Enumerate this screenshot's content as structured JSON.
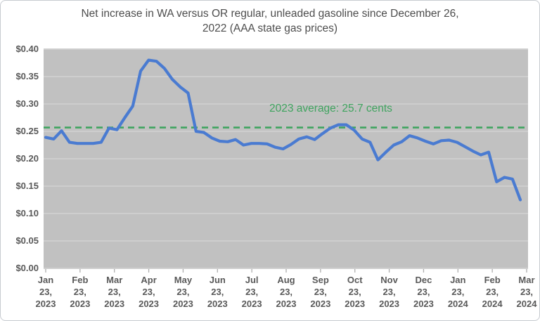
{
  "chart_data": {
    "type": "line",
    "title": "Net increase in WA versus OR regular, unleaded gasoline since December 26, 2022 (AAA state gas prices)",
    "title_lines": [
      "Net increase in WA versus OR regular, unleaded gasoline since December 26,",
      "2022 (AAA state gas prices)"
    ],
    "annotation": "2023 average: 25.7 cents",
    "average_line": {
      "value": 0.257,
      "style": "dashed",
      "color": "#3fa45f"
    },
    "ylim": [
      0,
      0.4
    ],
    "y_tick_step": 0.05,
    "y_tick_labels": [
      "$0.00",
      "$0.05",
      "$0.10",
      "$0.15",
      "$0.20",
      "$0.25",
      "$0.30",
      "$0.35",
      "$0.40"
    ],
    "x_tick_labels": [
      "Jan 23, 2023",
      "Feb 23, 2023",
      "Mar 23, 2023",
      "Apr 23, 2023",
      "May 23, 2023",
      "Jun 23, 2023",
      "Jul 23, 2023",
      "Aug 23, 2023",
      "Sep 23, 2023",
      "Oct 23, 2023",
      "Nov 23, 2023",
      "Dec 23, 2023",
      "Jan 23, 2024",
      "Feb 23, 2024",
      "Mar 23, 2024"
    ],
    "grid": true,
    "legend": "none",
    "series": [
      {
        "color": "#4a7bd1",
        "dates": [
          "2023-01-23",
          "2023-01-30",
          "2023-02-06",
          "2023-02-13",
          "2023-02-20",
          "2023-02-27",
          "2023-03-06",
          "2023-03-13",
          "2023-03-20",
          "2023-03-27",
          "2023-04-03",
          "2023-04-10",
          "2023-04-17",
          "2023-04-24",
          "2023-05-01",
          "2023-05-08",
          "2023-05-15",
          "2023-05-22",
          "2023-05-29",
          "2023-06-05",
          "2023-06-12",
          "2023-06-19",
          "2023-06-26",
          "2023-07-03",
          "2023-07-10",
          "2023-07-17",
          "2023-07-24",
          "2023-07-31",
          "2023-08-07",
          "2023-08-14",
          "2023-08-21",
          "2023-08-28",
          "2023-09-04",
          "2023-09-11",
          "2023-09-18",
          "2023-09-25",
          "2023-10-02",
          "2023-10-09",
          "2023-10-16",
          "2023-10-23",
          "2023-10-30",
          "2023-11-06",
          "2023-11-13",
          "2023-11-20",
          "2023-11-27",
          "2023-12-04",
          "2023-12-11",
          "2023-12-18",
          "2023-12-25",
          "2024-01-01",
          "2024-01-08",
          "2024-01-15",
          "2024-01-22",
          "2024-01-29",
          "2024-02-05",
          "2024-02-12",
          "2024-02-19",
          "2024-02-26",
          "2024-03-04",
          "2024-03-11",
          "2024-03-18"
        ],
        "values": [
          0.239,
          0.236,
          0.251,
          0.23,
          0.228,
          0.228,
          0.228,
          0.23,
          0.256,
          0.253,
          0.275,
          0.296,
          0.36,
          0.38,
          0.378,
          0.365,
          0.345,
          0.331,
          0.32,
          0.25,
          0.248,
          0.238,
          0.232,
          0.231,
          0.235,
          0.225,
          0.228,
          0.228,
          0.227,
          0.221,
          0.218,
          0.226,
          0.236,
          0.24,
          0.235,
          0.246,
          0.256,
          0.262,
          0.262,
          0.252,
          0.236,
          0.23,
          0.198,
          0.212,
          0.225,
          0.231,
          0.242,
          0.238,
          0.232,
          0.227,
          0.233,
          0.234,
          0.23,
          0.222,
          0.214,
          0.207,
          0.212,
          0.158,
          0.166,
          0.163,
          0.125
        ]
      }
    ],
    "colors": {
      "plot_bg": "#c1c1c1",
      "gridline": "#d7d7d7",
      "tick_mark": "#aeaeae",
      "series_line": "#4a7bd1",
      "average_line": "#3fa45f",
      "axis_label": "#595959",
      "title": "#4d4d4d"
    }
  }
}
